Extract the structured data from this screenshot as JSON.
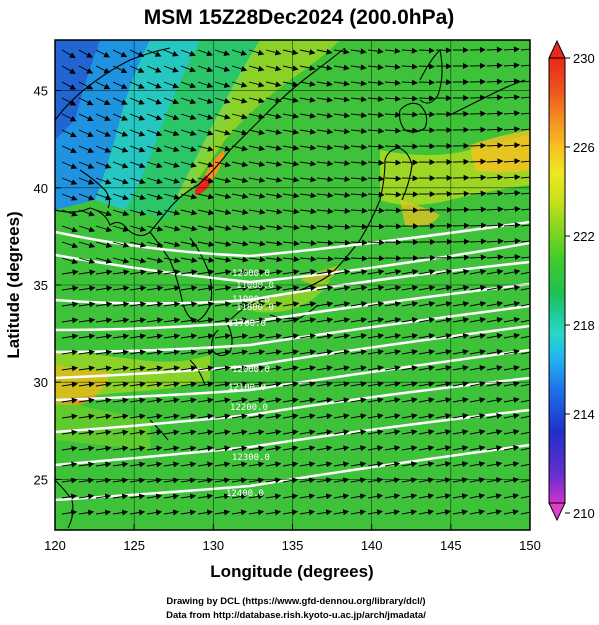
{
  "map": {
    "title": "MSM 15Z28Dec2024 (200.0hPa)",
    "xlabel": "Longitude (degrees)",
    "ylabel": "Latitude  (degrees)",
    "x_range": [
      120,
      150
    ],
    "y_range": [
      22.4,
      47.6
    ],
    "x_ticks": [
      "120",
      "125",
      "130",
      "135",
      "140",
      "145",
      "150"
    ],
    "y_ticks": [
      "25",
      "30",
      "35",
      "40",
      "45"
    ],
    "colorbar": {
      "ticks": [
        "230",
        "226",
        "222",
        "218",
        "214",
        "210"
      ],
      "range": [
        210,
        230
      ],
      "colors": [
        "#cc33cc",
        "#6a2fd0",
        "#2030c8",
        "#1e6ee8",
        "#22b8ee",
        "#28d8c8",
        "#20c890",
        "#1ec050",
        "#44cc2a",
        "#8ad61e",
        "#c8e01a",
        "#eee820",
        "#f8c020",
        "#f49020",
        "#ee5a1e",
        "#e8281a"
      ],
      "color_positions": [
        0,
        0.06,
        0.16,
        0.25,
        0.33,
        0.38,
        0.43,
        0.47,
        0.55,
        0.62,
        0.68,
        0.74,
        0.8,
        0.86,
        0.92,
        1.0
      ]
    },
    "contour_labels": [
      "12000.0",
      "11000.0",
      "11900.0",
      "11800.0",
      "11700.0",
      "12100.0",
      "12000.0",
      "12200.0",
      "12300.0",
      "12400.0"
    ],
    "colors": {
      "background": "#ffffff",
      "field_base": "#3ec23a",
      "coast": "#000000",
      "contour": "#ffffff",
      "vector": "#000000"
    },
    "credits": {
      "line1": "Drawing by DCL (https://www.gfd-dennou.org/library/dcl/)",
      "line2": "Data from http://database.rish.kyoto-u.ac.jp/arch/jmadata/"
    }
  }
}
